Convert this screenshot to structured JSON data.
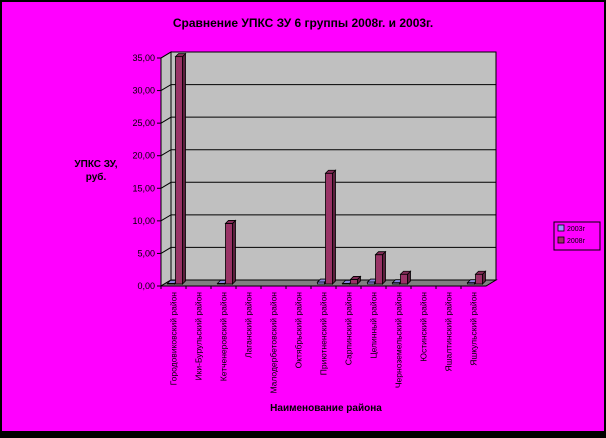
{
  "chart_data": {
    "type": "bar",
    "title": "Сравнение УПКС ЗУ 6 группы 2008г. и 2003г.",
    "xlabel": "Наименование района",
    "ylabel_lines": [
      "УПКС ЗУ,",
      "руб."
    ],
    "ylim": [
      0,
      35
    ],
    "yticks": [
      0,
      5,
      10,
      15,
      20,
      25,
      30,
      35
    ],
    "ytick_labels": [
      "0,00",
      "5,00",
      "10,00",
      "15,00",
      "20,00",
      "25,00",
      "30,00",
      "35,00"
    ],
    "grid": true,
    "legend_position": "right",
    "categories": [
      "Городовиковский район",
      "Ики-Бурульский район",
      "Кетченеровский район",
      "Лаганский район",
      "Малодербетовский район",
      "Октябрьский район",
      "Приютненский район",
      "Сарпинский район",
      "Целинный район",
      "Черноземельский район",
      "Юстинский район",
      "Яшалтинский район",
      "Яшкульский район"
    ],
    "series": [
      {
        "name": "2003г",
        "color": "#9b99ff",
        "values": [
          0.1,
          0,
          0.1,
          0,
          0,
          0,
          0.3,
          0.1,
          0.3,
          0.2,
          0,
          0,
          0.2
        ]
      },
      {
        "name": "2008г",
        "color": "#993366",
        "values": [
          34.9,
          0,
          9.3,
          0,
          0,
          0,
          17.0,
          0.7,
          4.5,
          1.5,
          0,
          0,
          1.5
        ]
      }
    ],
    "colors": {
      "background": "#ff00ff",
      "plot_area": "#c0c0c0",
      "floor": "#808080"
    }
  }
}
